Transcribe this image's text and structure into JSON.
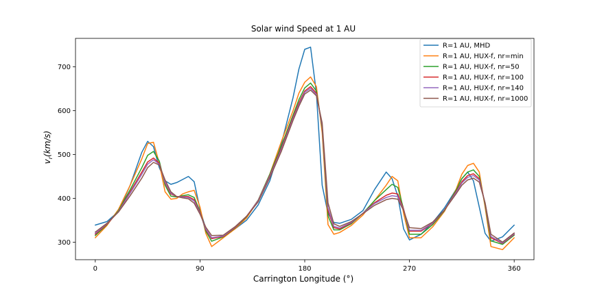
{
  "chart_data": {
    "type": "line",
    "title": "Solar wind Speed at 1 AU",
    "xlabel": "Carrington Longitude (°)",
    "ylabel": "v_r(km/s)",
    "xlim": [
      -17,
      377
    ],
    "ylim": [
      260,
      765
    ],
    "xticks": [
      0,
      90,
      180,
      270,
      360
    ],
    "xtick_labels": [
      "0",
      "90",
      "180",
      "270",
      "360"
    ],
    "yticks": [
      300,
      400,
      500,
      600,
      700
    ],
    "ytick_labels": [
      "300",
      "400",
      "500",
      "600",
      "700"
    ],
    "grid": false,
    "legend_position": "upper-right",
    "x": [
      0,
      10,
      20,
      30,
      40,
      45,
      50,
      55,
      60,
      65,
      70,
      75,
      80,
      85,
      90,
      95,
      100,
      110,
      120,
      130,
      140,
      150,
      160,
      170,
      175,
      180,
      185,
      190,
      195,
      200,
      205,
      210,
      220,
      230,
      240,
      250,
      255,
      260,
      265,
      270,
      280,
      290,
      300,
      310,
      315,
      320,
      325,
      330,
      335,
      340,
      350,
      360
    ],
    "series": [
      {
        "name": "R=1 AU, MHD",
        "color": "#1f77b4",
        "values": [
          339,
          347,
          370,
          430,
          505,
          530,
          518,
          470,
          440,
          432,
          436,
          443,
          450,
          438,
          375,
          330,
          308,
          315,
          330,
          350,
          385,
          440,
          525,
          630,
          695,
          740,
          745,
          640,
          430,
          365,
          345,
          343,
          352,
          372,
          420,
          460,
          445,
          405,
          330,
          305,
          318,
          345,
          378,
          420,
          445,
          460,
          440,
          380,
          320,
          302,
          312,
          339
        ]
      },
      {
        "name": "R=1 AU, HUX-f, nr=min",
        "color": "#ff7f0e",
        "values": [
          310,
          338,
          375,
          430,
          490,
          525,
          528,
          480,
          415,
          398,
          400,
          410,
          415,
          418,
          380,
          320,
          290,
          310,
          330,
          355,
          395,
          455,
          530,
          600,
          640,
          665,
          677,
          655,
          550,
          340,
          318,
          322,
          338,
          362,
          395,
          430,
          450,
          440,
          365,
          310,
          310,
          335,
          370,
          420,
          455,
          475,
          480,
          460,
          380,
          290,
          283,
          310
        ]
      },
      {
        "name": "R=1 AU, HUX-f, nr=50",
        "color": "#2ca02c",
        "values": [
          315,
          340,
          372,
          420,
          470,
          498,
          507,
          485,
          430,
          405,
          403,
          406,
          408,
          402,
          370,
          325,
          302,
          312,
          332,
          358,
          396,
          455,
          520,
          590,
          625,
          652,
          663,
          645,
          560,
          360,
          328,
          328,
          342,
          366,
          395,
          420,
          432,
          425,
          375,
          318,
          318,
          340,
          372,
          418,
          445,
          460,
          465,
          450,
          385,
          303,
          295,
          316
        ]
      },
      {
        "name": "R=1 AU, HUX-f, nr=100",
        "color": "#d62728",
        "values": [
          318,
          341,
          370,
          415,
          460,
          483,
          492,
          480,
          435,
          410,
          404,
          404,
          404,
          397,
          368,
          328,
          308,
          313,
          333,
          359,
          395,
          452,
          515,
          585,
          618,
          645,
          655,
          640,
          565,
          372,
          333,
          330,
          344,
          366,
          390,
          407,
          412,
          410,
          375,
          325,
          325,
          343,
          373,
          415,
          438,
          452,
          456,
          445,
          388,
          310,
          297,
          318
        ]
      },
      {
        "name": "R=1 AU, HUX-f, nr=140",
        "color": "#9467bd",
        "values": [
          320,
          342,
          370,
          412,
          455,
          478,
          488,
          478,
          437,
          412,
          404,
          403,
          402,
          394,
          366,
          330,
          310,
          314,
          334,
          359,
          394,
          450,
          512,
          582,
          614,
          642,
          651,
          637,
          567,
          378,
          336,
          332,
          345,
          366,
          388,
          402,
          406,
          404,
          373,
          327,
          327,
          344,
          373,
          413,
          435,
          448,
          452,
          442,
          389,
          313,
          298,
          319
        ]
      },
      {
        "name": "R=1 AU, HUX-f, nr=1000",
        "color": "#8c564b",
        "values": [
          323,
          343,
          369,
          406,
          446,
          470,
          482,
          476,
          442,
          415,
          404,
          401,
          399,
          389,
          364,
          334,
          315,
          316,
          335,
          359,
          392,
          447,
          508,
          578,
          610,
          638,
          647,
          634,
          572,
          390,
          342,
          336,
          347,
          365,
          384,
          397,
          400,
          398,
          372,
          333,
          331,
          346,
          373,
          410,
          430,
          442,
          446,
          437,
          390,
          318,
          300,
          321
        ]
      }
    ]
  }
}
